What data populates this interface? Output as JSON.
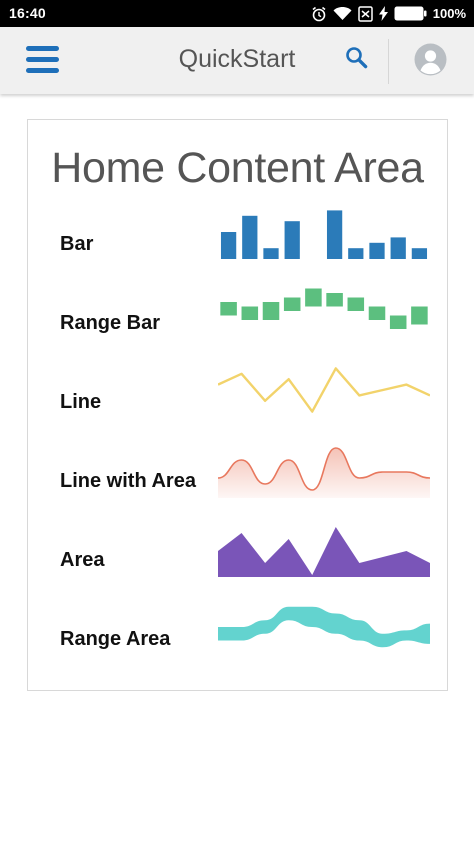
{
  "status_bar": {
    "time": "16:40",
    "battery_percent": "100%",
    "icons": [
      "alarm-icon",
      "wifi-icon",
      "no-sim-icon",
      "charging-icon",
      "battery-icon"
    ]
  },
  "app_bar": {
    "title": "QuickStart",
    "menu_icon": "hamburger-menu-icon",
    "search_icon": "search-icon",
    "avatar_icon": "avatar-icon",
    "accent_color": "#1e6fb9"
  },
  "content": {
    "title": "Home Content Area",
    "rows": [
      {
        "label": "Bar",
        "type": "bar",
        "color": "#2b7bb9"
      },
      {
        "label": "Range Bar",
        "type": "range-bar",
        "color": "#5cbf7f"
      },
      {
        "label": "Line",
        "type": "line",
        "color": "#f2d36b"
      },
      {
        "label": "Line with Area",
        "type": "line-area",
        "color": "#e8785e"
      },
      {
        "label": "Area",
        "type": "area",
        "color": "#7a55b8"
      },
      {
        "label": "Range Area",
        "type": "range-area",
        "color": "#63d3cf"
      }
    ]
  },
  "chart_data": [
    {
      "type": "bar",
      "values": [
        5,
        8,
        2,
        7,
        0,
        9,
        2,
        3,
        4,
        2
      ]
    },
    {
      "type": "bar",
      "ranges": [
        [
          5,
          8
        ],
        [
          4,
          7
        ],
        [
          4,
          8
        ],
        [
          6,
          9
        ],
        [
          7,
          11
        ],
        [
          7,
          10
        ],
        [
          6,
          9
        ],
        [
          4,
          7
        ],
        [
          2,
          5
        ],
        [
          3,
          7
        ]
      ]
    },
    {
      "type": "line",
      "values": [
        6,
        8,
        3,
        7,
        1,
        9,
        4,
        5,
        6,
        4
      ]
    },
    {
      "type": "area",
      "values": [
        3,
        6,
        2,
        6,
        1,
        8,
        3,
        4,
        4,
        3
      ]
    },
    {
      "type": "area",
      "values": [
        4,
        7,
        2,
        6,
        0,
        8,
        2,
        3,
        4,
        2
      ]
    },
    {
      "type": "area",
      "ranges": [
        [
          2,
          4
        ],
        [
          2,
          4
        ],
        [
          3,
          5
        ],
        [
          5,
          7
        ],
        [
          4,
          7
        ],
        [
          3,
          6
        ],
        [
          2,
          5
        ],
        [
          1,
          3
        ],
        [
          2,
          3.5
        ],
        [
          1.5,
          4.5
        ]
      ]
    }
  ]
}
